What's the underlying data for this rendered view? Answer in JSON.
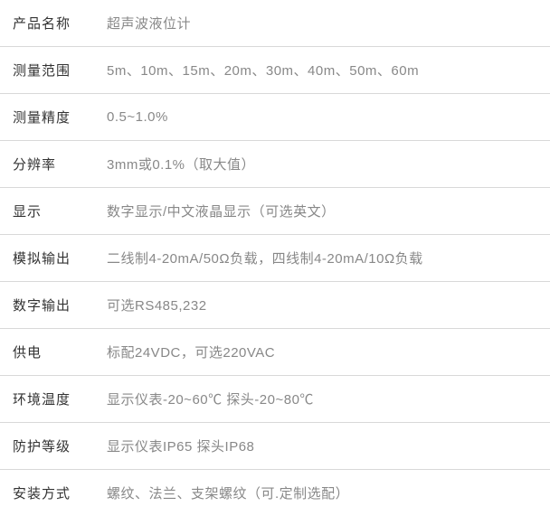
{
  "table": {
    "border_color": "#d8d8d8",
    "label_color": "#333333",
    "value_color": "#888888",
    "background_color": "#ffffff",
    "font_size": 15,
    "label_width": 110,
    "row_padding_v": 15,
    "rows": [
      {
        "label": "产品名称",
        "value": "超声波液位计"
      },
      {
        "label": "测量范围",
        "value": "5m、10m、15m、20m、30m、40m、50m、60m"
      },
      {
        "label": "测量精度",
        "value": "0.5~1.0%"
      },
      {
        "label": "分辨率",
        "value": "3mm或0.1%（取大值）"
      },
      {
        "label": "显示",
        "value": "数字显示/中文液晶显示（可选英文）"
      },
      {
        "label": "模拟输出",
        "value": "二线制4-20mA/50Ω负载，四线制4-20mA/10Ω负载"
      },
      {
        "label": "数字输出",
        "value": "可选RS485,232"
      },
      {
        "label": "供电",
        "value": "标配24VDC，可选220VAC"
      },
      {
        "label": "环境温度",
        "value": "显示仪表-20~60℃  探头-20~80℃"
      },
      {
        "label": "防护等级",
        "value": "显示仪表IP65  探头IP68"
      },
      {
        "label": "安装方式",
        "value": "螺纹、法兰、支架螺纹（可.定制选配）"
      }
    ]
  }
}
